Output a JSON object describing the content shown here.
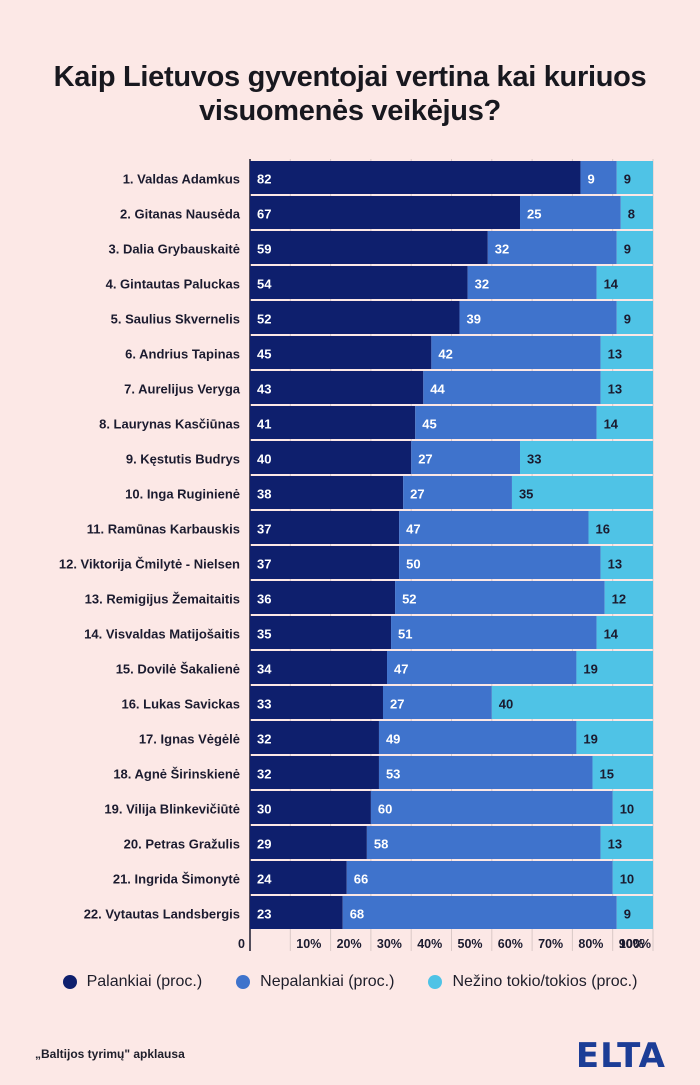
{
  "title_lines": [
    "Kaip Lietuvos gyventojai vertina kai kuriuos",
    "visuomenės veikėjus?"
  ],
  "colors": {
    "favorable": "#0e1f6d",
    "unfavorable": "#3f73cc",
    "unknown": "#4fc3e6"
  },
  "legend": [
    {
      "label": "Palankiai (proc.)",
      "color": "#0e1f6d"
    },
    {
      "label": "Nepalankiai (proc.)",
      "color": "#3f73cc"
    },
    {
      "label": "Nežino tokio/tokios (proc.)",
      "color": "#4fc3e6"
    }
  ],
  "source_note": "„Baltijos tyrimų\" apklausa",
  "logo_text": "ELTA",
  "chart_data": {
    "type": "bar",
    "orientation": "horizontal",
    "stacked": true,
    "categories": [
      "1. Valdas Adamkus",
      "2. Gitanas Nausėda",
      "3. Dalia Grybauskaitė",
      "4. Gintautas Paluckas",
      "5. Saulius Skvernelis",
      "6. Andrius Tapinas",
      "7. Aurelijus Veryga",
      "8. Laurynas Kasčiūnas",
      "9. Kęstutis Budrys",
      "10. Inga Ruginienė",
      "11. Ramūnas Karbauskis",
      "12. Viktorija Čmilytė - Nielsen",
      "13. Remigijus Žemaitaitis",
      "14. Visvaldas Matijošaitis",
      "15. Dovilė Šakalienė",
      "16. Lukas Savickas",
      "17. Ignas Vėgėlė",
      "18. Agnė Širinskienė",
      "19. Vilija Blinkevičiūtė",
      "20. Petras Gražulis",
      "21. Ingrida Šimonytė",
      "22. Vytautas Landsbergis"
    ],
    "series": [
      {
        "name": "Palankiai (proc.)",
        "values": [
          82,
          67,
          59,
          54,
          52,
          45,
          43,
          41,
          40,
          38,
          37,
          37,
          36,
          35,
          34,
          33,
          32,
          32,
          30,
          29,
          24,
          23
        ]
      },
      {
        "name": "Nepalankiai (proc.)",
        "values": [
          9,
          25,
          32,
          32,
          39,
          42,
          44,
          45,
          27,
          27,
          47,
          50,
          52,
          51,
          47,
          27,
          49,
          53,
          60,
          58,
          66,
          68
        ]
      },
      {
        "name": "Nežino tokio/tokios (proc.)",
        "values": [
          9,
          8,
          9,
          14,
          9,
          13,
          13,
          14,
          33,
          35,
          16,
          13,
          12,
          14,
          19,
          40,
          19,
          15,
          10,
          13,
          10,
          9
        ]
      }
    ],
    "x_ticks": [
      "0",
      "10%",
      "20%",
      "30%",
      "40%",
      "50%",
      "60%",
      "70%",
      "80%",
      "90%",
      "100%"
    ],
    "xlim": [
      0,
      100
    ]
  }
}
